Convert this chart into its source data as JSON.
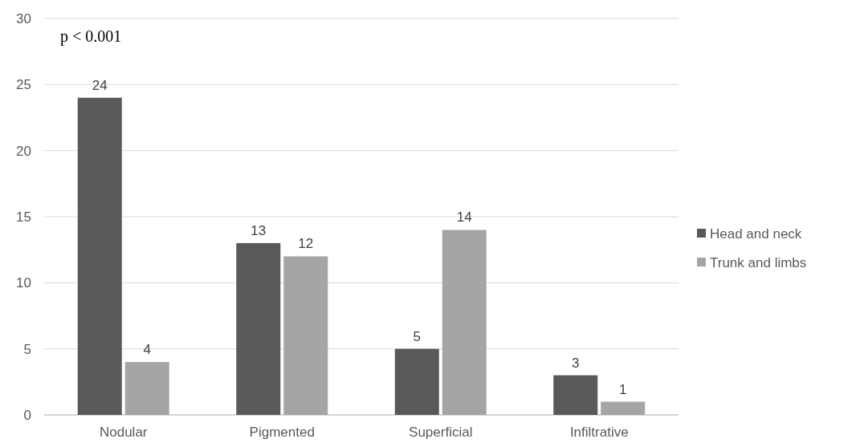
{
  "chart_data": {
    "type": "bar",
    "categories": [
      "Nodular",
      "Pigmented",
      "Superficial",
      "Infiltrative"
    ],
    "series": [
      {
        "name": "Head and neck",
        "color": "#595959",
        "values": [
          24,
          13,
          5,
          3
        ]
      },
      {
        "name": "Trunk and limbs",
        "color": "#a5a5a5",
        "values": [
          4,
          12,
          14,
          1
        ]
      }
    ],
    "ylim": [
      0,
      30
    ],
    "yticks": [
      0,
      5,
      10,
      15,
      20,
      25,
      30
    ],
    "grid": "y",
    "legend": "right",
    "data_labels": true,
    "annotations": [
      "p < 0.001"
    ]
  }
}
